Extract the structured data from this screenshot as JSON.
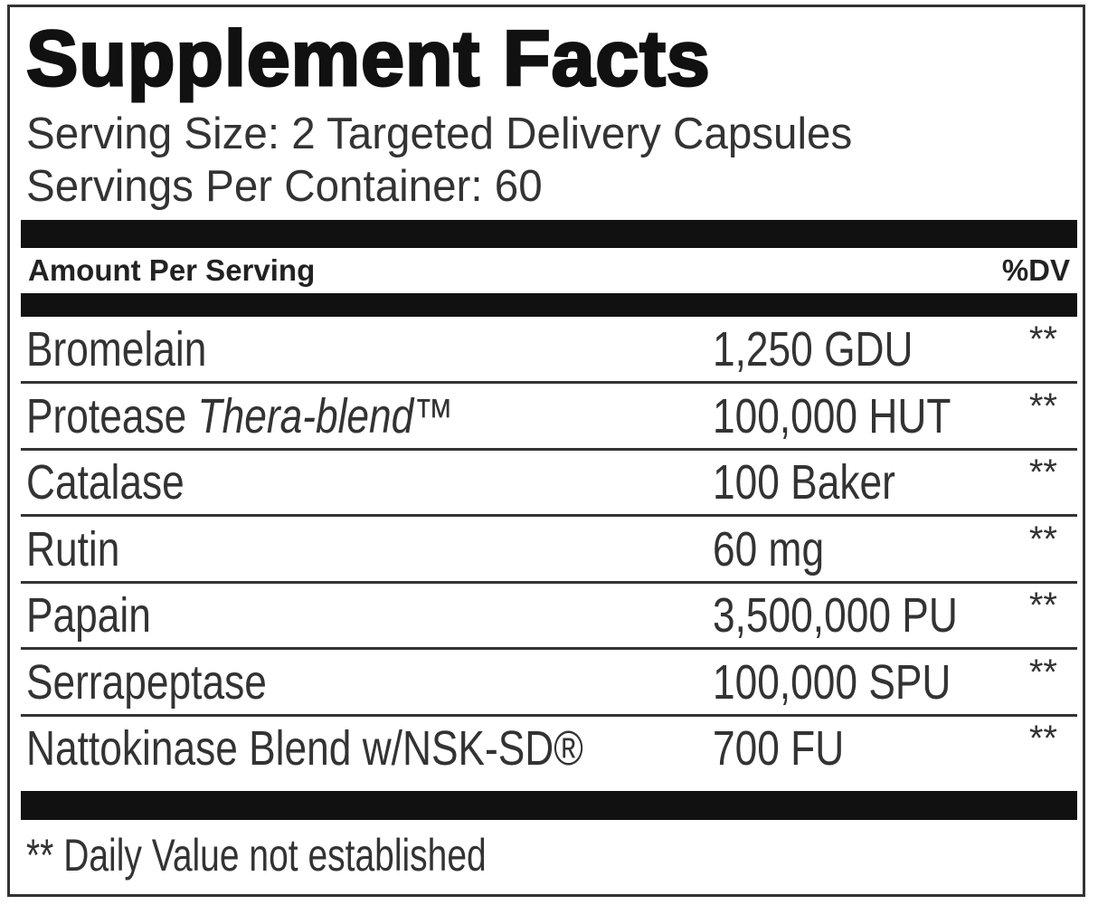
{
  "title": "Supplement Facts",
  "serving_size": "Serving Size: 2 Targeted Delivery Capsules",
  "servings_per_container": "Servings Per Container: 60",
  "header": {
    "amount_per_serving": "Amount Per Serving",
    "dv": "%DV"
  },
  "rows": [
    {
      "name": "Bromelain",
      "name_italic": "",
      "amount": "1,250 GDU",
      "dv": "**"
    },
    {
      "name": "Protease ",
      "name_italic": "Thera-blend™",
      "amount": "100,000 HUT",
      "dv": "**"
    },
    {
      "name": "Catalase",
      "name_italic": "",
      "amount": "100 Baker",
      "dv": "**"
    },
    {
      "name": "Rutin",
      "name_italic": "",
      "amount": "60 mg",
      "dv": "**"
    },
    {
      "name": "Papain",
      "name_italic": "",
      "amount": "3,500,000 PU",
      "dv": "**"
    },
    {
      "name": "Serrapeptase",
      "name_italic": "",
      "amount": "100,000 SPU",
      "dv": "**"
    },
    {
      "name": "Nattokinase Blend w/NSK-SD®",
      "name_italic": "",
      "amount": "700 FU",
      "dv": "**"
    }
  ],
  "footnote": "** Daily Value not established"
}
